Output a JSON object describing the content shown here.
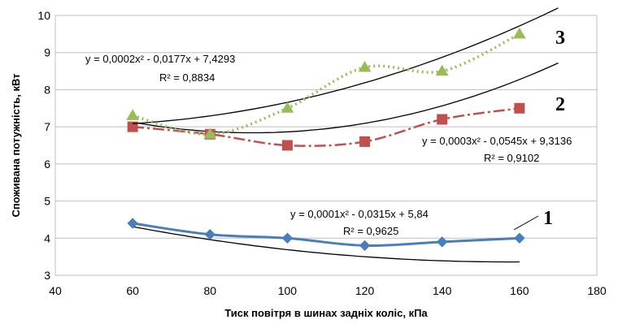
{
  "chart_data": {
    "type": "line",
    "xlabel": "Тиск повітря в шинах задніх коліс, кПа",
    "ylabel": "Споживана потужність, кВт",
    "xlim": [
      40,
      180
    ],
    "ylim": [
      3,
      10
    ],
    "xticks": [
      "40",
      "60",
      "80",
      "100",
      "120",
      "140",
      "160",
      "180"
    ],
    "yticks": [
      "3",
      "4",
      "5",
      "6",
      "7",
      "8",
      "9",
      "10"
    ],
    "grid": "horizontal",
    "series": [
      {
        "label": "1",
        "color": "#4a7ebb",
        "marker": "diamond",
        "x": [
          60,
          80,
          100,
          120,
          140,
          160
        ],
        "y": [
          4.4,
          4.1,
          4.0,
          3.8,
          3.9,
          4.0
        ],
        "trend": {
          "a": 0.0001,
          "b": -0.0315,
          "c": 5.84,
          "x_range": [
            60,
            160
          ]
        },
        "equation": "y = 0,0001x² - 0,0315x + 5,84",
        "r2": "R² = 0,9625"
      },
      {
        "label": "2",
        "color": "#c0504d",
        "marker": "square",
        "x": [
          60,
          80,
          100,
          120,
          140,
          160
        ],
        "y": [
          7.0,
          6.8,
          6.5,
          6.6,
          7.2,
          7.5
        ],
        "trend": {
          "a": 0.0003,
          "b": -0.0545,
          "c": 9.3136,
          "x_range": [
            60,
            170
          ]
        },
        "equation": "y = 0,0003x² - 0,0545x + 9,3136",
        "r2": "R² = 0,9102"
      },
      {
        "label": "3",
        "color": "#9bbb59",
        "marker": "triangle",
        "x": [
          60,
          80,
          100,
          120,
          140,
          160
        ],
        "y": [
          7.3,
          6.8,
          7.5,
          8.6,
          8.5,
          9.5
        ],
        "trend": {
          "a": 0.0002,
          "b": -0.0177,
          "c": 7.4293,
          "x_range": [
            60,
            170
          ]
        },
        "equation": "y = 0,0002x² - 0,0177x + 7,4293",
        "r2": "R² = 0,8834"
      }
    ]
  }
}
